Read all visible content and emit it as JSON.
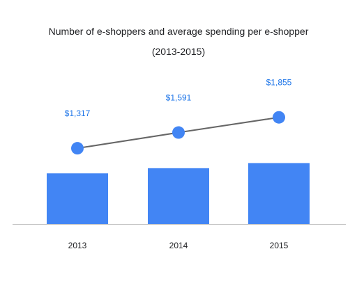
{
  "chart_data": {
    "type": "bar",
    "title": "Number of e-shoppers and average spending per e-shopper",
    "subtitle": "(2013-2015)",
    "categories": [
      "2013",
      "2014",
      "2015"
    ],
    "series": [
      {
        "type": "bar",
        "values": [
          59,
          65,
          71
        ],
        "ylim": [
          0,
          120
        ]
      },
      {
        "type": "line",
        "values": [
          1317,
          1591,
          1855
        ],
        "labels": [
          "$1,317",
          "$1,591",
          "$1,855"
        ],
        "ylim": [
          0,
          3800
        ]
      }
    ],
    "xlabel": "",
    "ylabel": "",
    "grid": false,
    "legend": "none",
    "colors": {
      "bar": "#4285F4",
      "line": "#666666",
      "marker": "#4285F4",
      "label": "#1A73E8",
      "axis": "#BDBDBD",
      "text": "#202124"
    }
  }
}
